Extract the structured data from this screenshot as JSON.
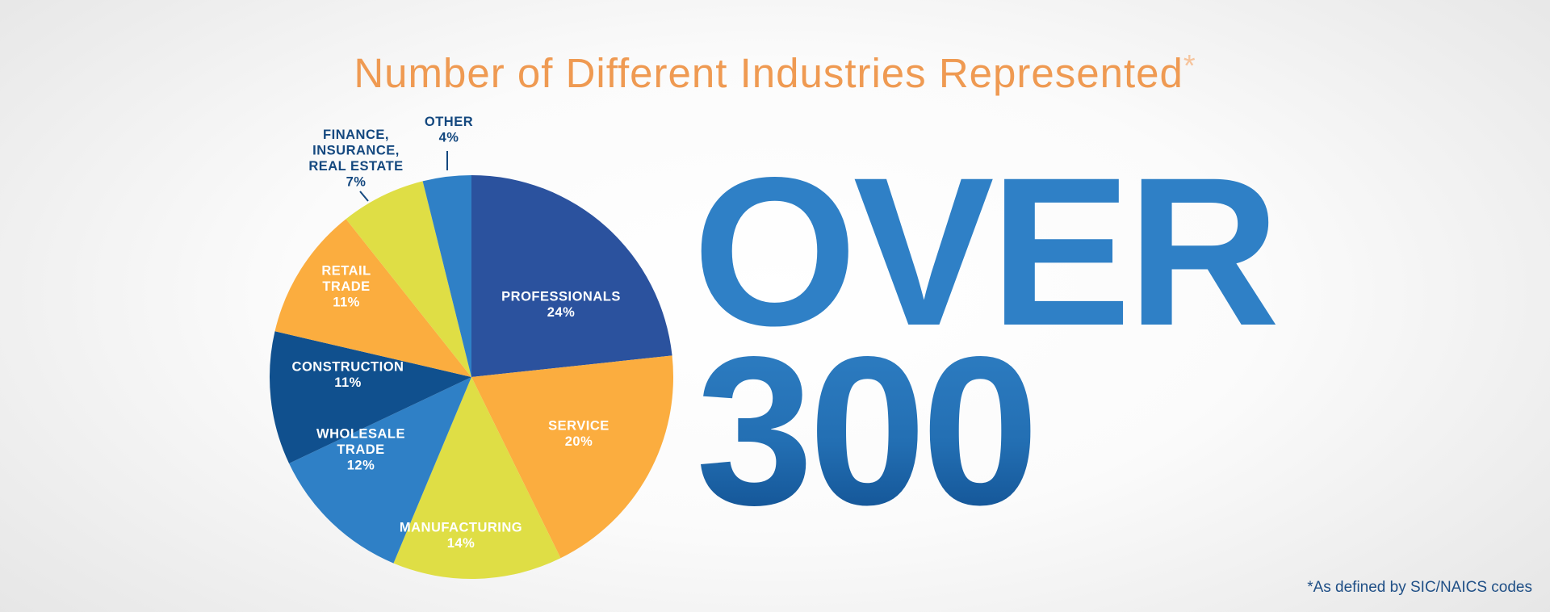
{
  "header": {
    "title": "Number of Different Industries Represented",
    "title_marker": "*"
  },
  "headline": {
    "line1": "OVER",
    "line2": "300"
  },
  "footnote": "*As defined by SIC/NAICS codes",
  "colors": {
    "title": "#ef9a52",
    "title_marker": "#f6c49c",
    "footnote": "#1f4f86",
    "outside_label": "#14487f",
    "inside_label": "#ffffff"
  },
  "chart_data": {
    "type": "pie",
    "title": "Number of Different Industries Represented",
    "unit": "%",
    "slices": [
      {
        "name": "PROFESSIONALS",
        "label_lines": [
          "PROFESSIONALS",
          "24%"
        ],
        "value": 24,
        "color": "#2b529e",
        "label_position": "inside"
      },
      {
        "name": "SERVICE",
        "label_lines": [
          "SERVICE",
          "20%"
        ],
        "value": 20,
        "color": "#fbad3f",
        "label_position": "inside"
      },
      {
        "name": "MANUFACTURING",
        "label_lines": [
          "MANUFACTURING",
          "14%"
        ],
        "value": 14,
        "color": "#dfde45",
        "label_position": "inside"
      },
      {
        "name": "WHOLESALE TRADE",
        "label_lines": [
          "WHOLESALE",
          "TRADE",
          "12%"
        ],
        "value": 12,
        "color": "#2f80c6",
        "label_position": "inside"
      },
      {
        "name": "CONSTRUCTION",
        "label_lines": [
          "CONSTRUCTION",
          "11%"
        ],
        "value": 11,
        "color": "#10508e",
        "label_position": "inside"
      },
      {
        "name": "RETAIL TRADE",
        "label_lines": [
          "RETAIL",
          "TRADE",
          "11%"
        ],
        "value": 11,
        "color": "#fbad3f",
        "label_position": "inside"
      },
      {
        "name": "FINANCE, INSURANCE, REAL ESTATE",
        "label_lines": [
          "FINANCE,",
          "INSURANCE,",
          "REAL ESTATE",
          "7%"
        ],
        "value": 7,
        "color": "#dfde45",
        "label_position": "outside"
      },
      {
        "name": "OTHER",
        "label_lines": [
          "OTHER",
          "4%"
        ],
        "value": 4,
        "color": "#2f80c6",
        "label_position": "outside"
      }
    ]
  }
}
